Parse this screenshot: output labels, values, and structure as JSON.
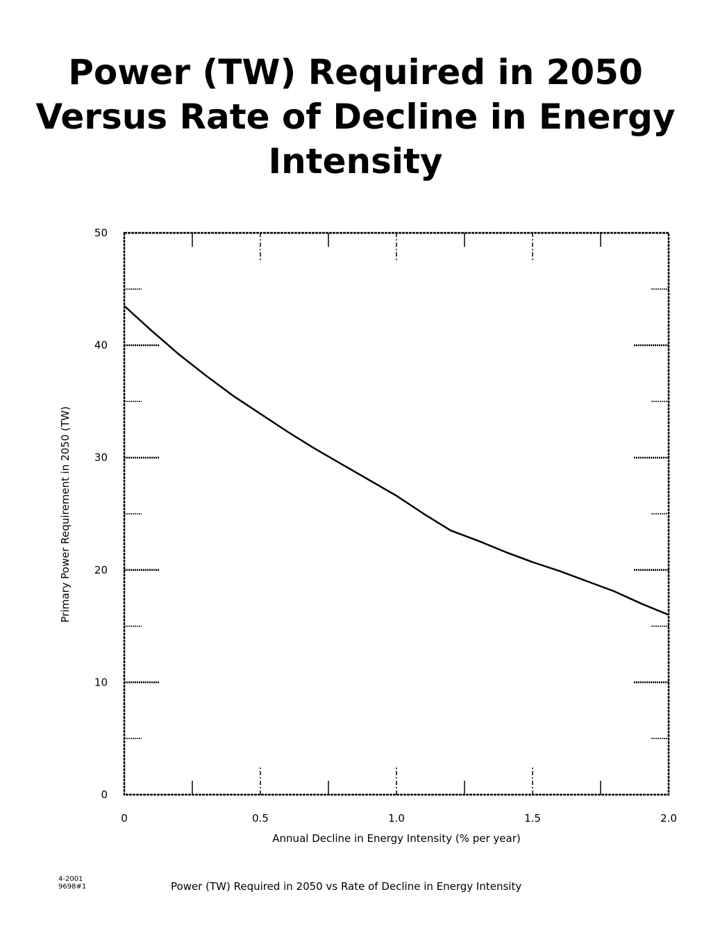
{
  "page": {
    "title_lines": [
      "Power (TW) Required in 2050",
      "Versus Rate of Decline in Energy",
      "Intensity"
    ],
    "footer_code": [
      "4-2001",
      "9698#1"
    ],
    "caption": "Power (TW) Required in 2050 vs Rate of Decline in Energy Intensity"
  },
  "chart_data": {
    "type": "line",
    "title": "Power (TW) Required in 2050 Versus Rate of Decline in Energy Intensity",
    "xlabel": "Annual Decline in Energy Intensity  (% per year)",
    "ylabel": "Primary Power Requirement in 2050  (TW)",
    "xlim": [
      0,
      2.0
    ],
    "ylim": [
      0,
      50
    ],
    "xticks": [
      "0",
      "0.5",
      "1.0",
      "1.5",
      "2.0"
    ],
    "yticks": [
      "0",
      "10",
      "20",
      "30",
      "40",
      "50"
    ],
    "grid": false,
    "series": [
      {
        "x": [
          0,
          0.1,
          0.2,
          0.3,
          0.4,
          0.5,
          0.6,
          0.7,
          0.8,
          0.9,
          1.0,
          1.1,
          1.2,
          1.3,
          1.4,
          1.5,
          1.6,
          1.7,
          1.8,
          1.9,
          2.0
        ],
        "y": [
          43.5,
          41.3,
          39.2,
          37.3,
          35.5,
          33.9,
          32.3,
          30.8,
          29.4,
          28.0,
          26.6,
          25.0,
          23.5,
          22.6,
          21.6,
          20.7,
          19.9,
          19.0,
          18.1,
          17.0,
          16.0
        ]
      }
    ],
    "line_color": "#000000"
  }
}
